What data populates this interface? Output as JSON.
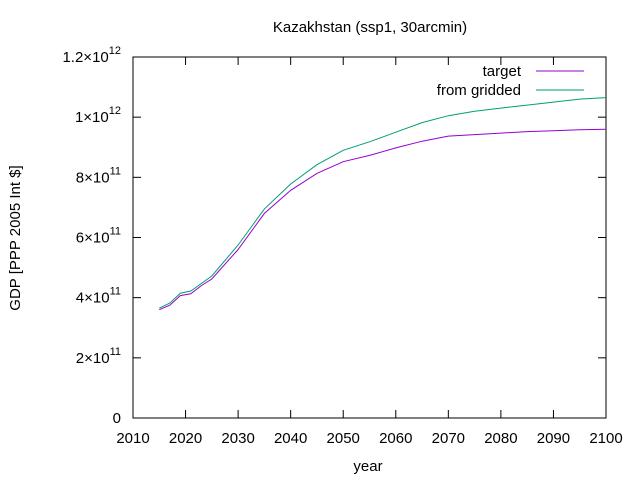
{
  "chart_data": {
    "type": "line",
    "title": "Kazakhstan (ssp1, 30arcmin)",
    "xlabel": "year",
    "ylabel": "GDP [PPP 2005 Int $]",
    "xlim": [
      2010,
      2100
    ],
    "ylim": [
      0,
      1200000000000.0
    ],
    "x_ticks": [
      "2010",
      "2020",
      "2030",
      "2040",
      "2050",
      "2060",
      "2070",
      "2080",
      "2090",
      "2100"
    ],
    "y_ticks": [
      {
        "value": 0,
        "mantissa": "0",
        "exp": ""
      },
      {
        "value": 200000000000.0,
        "mantissa": "2×10",
        "exp": "11"
      },
      {
        "value": 400000000000.0,
        "mantissa": "4×10",
        "exp": "11"
      },
      {
        "value": 600000000000.0,
        "mantissa": "6×10",
        "exp": "11"
      },
      {
        "value": 800000000000.0,
        "mantissa": "8×10",
        "exp": "11"
      },
      {
        "value": 1000000000000.0,
        "mantissa": "1×10",
        "exp": "12"
      },
      {
        "value": 1200000000000.0,
        "mantissa": "1.2×10",
        "exp": "12"
      }
    ],
    "legend_position": "top-right",
    "grid": false,
    "series": [
      {
        "name": "target",
        "color": "#9400d3",
        "x": [
          2015,
          2017,
          2019,
          2021,
          2023,
          2025,
          2030,
          2035,
          2040,
          2045,
          2050,
          2055,
          2060,
          2065,
          2070,
          2075,
          2080,
          2085,
          2090,
          2095,
          2100
        ],
        "y": [
          360000000000.0,
          375000000000.0,
          407000000000.0,
          413000000000.0,
          440000000000.0,
          462000000000.0,
          560000000000.0,
          680000000000.0,
          757000000000.0,
          813000000000.0,
          852000000000.0,
          873000000000.0,
          898000000000.0,
          920000000000.0,
          937000000000.0,
          942000000000.0,
          947000000000.0,
          952000000000.0,
          955000000000.0,
          958000000000.0,
          960000000000.0
        ]
      },
      {
        "name": "from gridded",
        "color": "#009e73",
        "x": [
          2015,
          2017,
          2019,
          2021,
          2023,
          2025,
          2030,
          2035,
          2040,
          2045,
          2050,
          2055,
          2060,
          2065,
          2070,
          2075,
          2080,
          2085,
          2090,
          2095,
          2100
        ],
        "y": [
          365000000000.0,
          382000000000.0,
          415000000000.0,
          422000000000.0,
          447000000000.0,
          472000000000.0,
          575000000000.0,
          695000000000.0,
          778000000000.0,
          842000000000.0,
          890000000000.0,
          918000000000.0,
          950000000000.0,
          982000000000.0,
          1005000000000.0,
          1020000000000.0,
          1030000000000.0,
          1040000000000.0,
          1050000000000.0,
          1060000000000.0,
          1065000000000.0
        ]
      }
    ]
  }
}
